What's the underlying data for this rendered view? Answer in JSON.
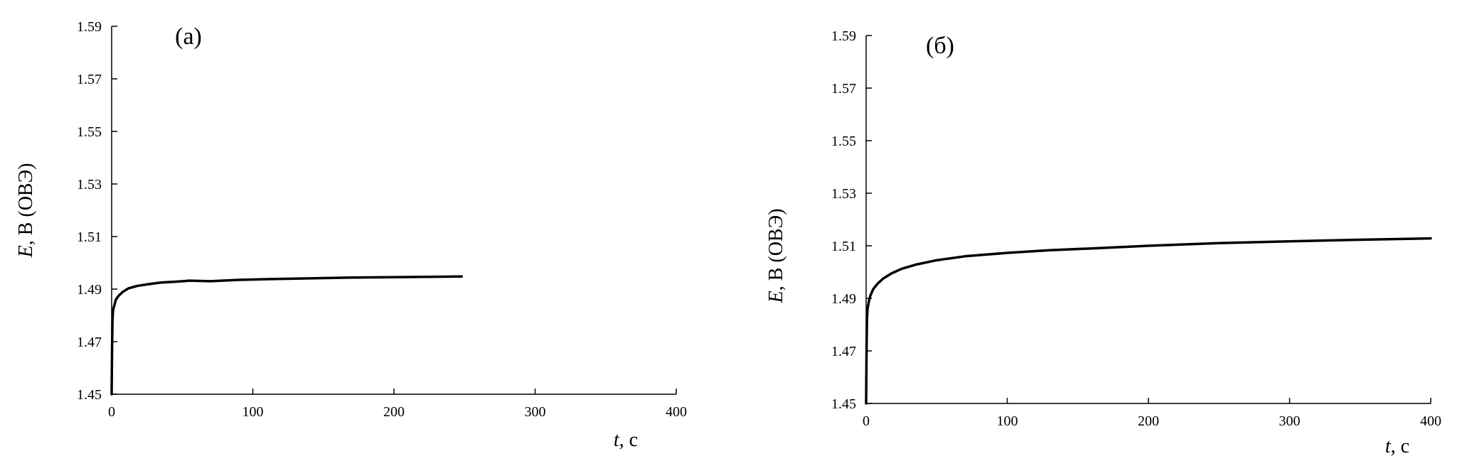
{
  "chart_data": [
    {
      "type": "line",
      "panel_label": "(а)",
      "xlabel_var": "t",
      "xlabel_unit": ", с",
      "ylabel_var": "E",
      "ylabel_unit": ", В (ОВЭ)",
      "xlim": [
        0,
        400
      ],
      "ylim": [
        1.45,
        1.59
      ],
      "xticks": [
        0,
        100,
        200,
        300,
        400
      ],
      "yticks": [
        1.45,
        1.47,
        1.49,
        1.51,
        1.53,
        1.55,
        1.57,
        1.59
      ],
      "series": [
        {
          "color": "#000000",
          "x": [
            0,
            0.3,
            0.6,
            1,
            2,
            3,
            5,
            8,
            12,
            18,
            25,
            35,
            45,
            55,
            70,
            90,
            110,
            130,
            150,
            170,
            190,
            210,
            230,
            248
          ],
          "y": [
            1.45,
            1.468,
            1.478,
            1.482,
            1.484,
            1.486,
            1.4875,
            1.489,
            1.4903,
            1.4912,
            1.4918,
            1.4925,
            1.4928,
            1.4932,
            1.493,
            1.4935,
            1.4938,
            1.494,
            1.4942,
            1.4944,
            1.4945,
            1.4946,
            1.4947,
            1.4948
          ]
        }
      ]
    },
    {
      "type": "line",
      "panel_label": "(б)",
      "xlabel_var": "t",
      "xlabel_unit": ", с",
      "ylabel_var": "E",
      "ylabel_unit": ", В (ОВЭ)",
      "xlim": [
        0,
        400
      ],
      "ylim": [
        1.45,
        1.59
      ],
      "xticks": [
        0,
        100,
        200,
        300,
        400
      ],
      "yticks": [
        1.45,
        1.47,
        1.49,
        1.51,
        1.53,
        1.55,
        1.57,
        1.59
      ],
      "series": [
        {
          "color": "#000000",
          "x": [
            0,
            0.3,
            0.6,
            1,
            2,
            3,
            5,
            8,
            12,
            18,
            25,
            35,
            50,
            70,
            100,
            130,
            160,
            200,
            250,
            300,
            350,
            400
          ],
          "y": [
            1.45,
            1.47,
            1.482,
            1.486,
            1.489,
            1.491,
            1.4935,
            1.4955,
            1.4975,
            1.4995,
            1.5012,
            1.5028,
            1.5045,
            1.506,
            1.5073,
            1.5083,
            1.509,
            1.51,
            1.511,
            1.5117,
            1.5123,
            1.5128
          ]
        }
      ]
    }
  ]
}
